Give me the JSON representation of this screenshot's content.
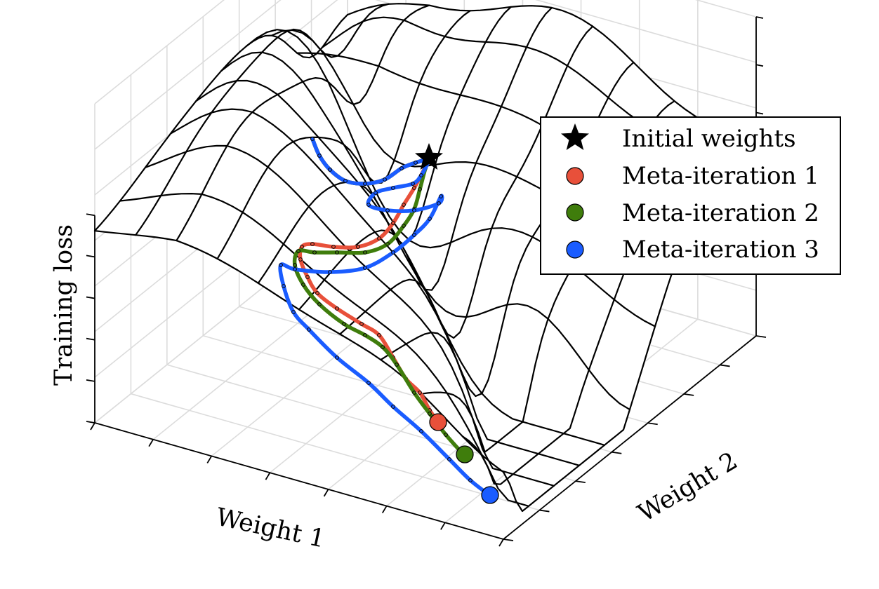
{
  "chart_data": {
    "type": "surface3d",
    "title": "",
    "xlabel": "Weight 1",
    "ylabel": "Weight 2",
    "zlabel": "Training loss",
    "grid": true,
    "tick_labels_shown": false,
    "legend": {
      "placement": "top-right",
      "entries": [
        {
          "label": "Initial weights",
          "marker": "star",
          "color": "#000000"
        },
        {
          "label": "Meta-iteration 1",
          "marker": "circle",
          "color": "#e8503a"
        },
        {
          "label": "Meta-iteration 2",
          "marker": "circle",
          "color": "#3f7d0c"
        },
        {
          "label": "Meta-iteration 3",
          "marker": "circle",
          "color": "#1a5cff"
        }
      ]
    },
    "series": [
      {
        "name": "Meta-iteration 1",
        "color": "#e8503a"
      },
      {
        "name": "Meta-iteration 2",
        "color": "#3f7d0c"
      },
      {
        "name": "Meta-iteration 3",
        "color": "#1a5cff"
      }
    ]
  }
}
